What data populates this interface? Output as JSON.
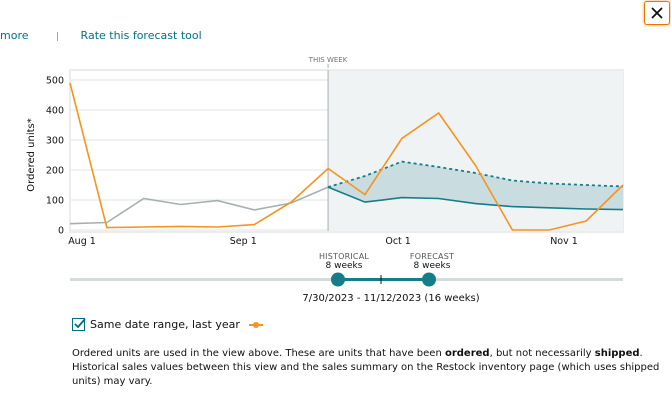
{
  "top_links": {
    "more_label": "more",
    "separator": "|",
    "rate_label": "Rate this forecast tool"
  },
  "close_button": {
    "icon": "close-icon"
  },
  "chart_data": {
    "type": "line",
    "title": "",
    "xlabel": "",
    "ylabel": "Ordered units*",
    "ylim": [
      0,
      500
    ],
    "yticks": [
      0,
      100,
      200,
      300,
      400,
      500
    ],
    "xtick_labels": [
      {
        "label": "Aug 1",
        "week_index": 0
      },
      {
        "label": "Sep 1",
        "week_index": 4.7
      },
      {
        "label": "Oct 1",
        "week_index": 8.9
      },
      {
        "label": "Nov 1",
        "week_index": 13.4
      }
    ],
    "grid": true,
    "weeks": 16,
    "this_week_label": "THIS WEEK",
    "this_week_index": 7,
    "colors": {
      "historical": "#a7b0b0",
      "last_year": "#f7931e",
      "forecast": "#147d87",
      "forecast_band": "#c9dde0",
      "forecast_bg": "#eff3f4",
      "grid": "#ebeded"
    },
    "series": [
      {
        "name": "Historical",
        "style": "solid",
        "start_index": 0,
        "values": [
          21,
          25,
          105,
          85,
          98,
          67,
          90,
          143
        ]
      },
      {
        "name": "Same date range, last year",
        "style": "solid",
        "start_index": 0,
        "values": [
          490,
          8,
          10,
          12,
          10,
          18,
          93,
          205,
          118,
          305,
          390,
          215,
          0,
          0,
          30,
          150
        ]
      },
      {
        "name": "Forecast low",
        "style": "solid",
        "start_index": 7,
        "values": [
          143,
          93,
          108,
          105,
          88,
          78,
          74,
          70,
          68
        ]
      },
      {
        "name": "Forecast high",
        "style": "dashed",
        "start_index": 7,
        "values": [
          143,
          180,
          228,
          210,
          190,
          165,
          155,
          150,
          145
        ]
      }
    ]
  },
  "slider": {
    "historical_caption": "HISTORICAL",
    "historical_value": "8 weeks",
    "forecast_caption": "FORECAST",
    "forecast_value": "8 weeks",
    "range_text": "7/30/2023 - 11/12/2023 (16 weeks)",
    "track_color": "#d5dbdb",
    "active_color": "#147d87"
  },
  "legend": {
    "checkbox_checked": true,
    "label": "Same date range, last year"
  },
  "note": {
    "part1": "Ordered units are used in the view above. These are units that have been ",
    "bold1": "ordered",
    "part2": ", but not necessarily ",
    "bold2": "shipped",
    "part3": ". Historical sales values between this view and the sales summary on the Restock inventory page (which uses shipped units) may vary."
  }
}
